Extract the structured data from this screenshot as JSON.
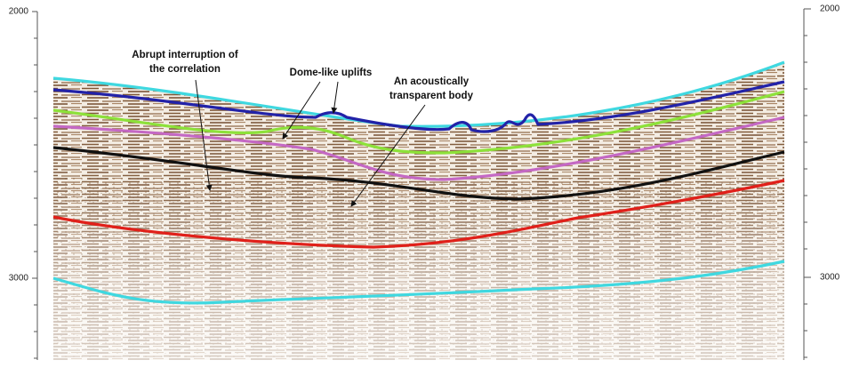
{
  "left_axis": {
    "labels": [
      "2000",
      "3000"
    ]
  },
  "right_axis": {
    "labels": [
      "2000",
      "3000"
    ]
  },
  "annotations": [
    {
      "lines": [
        "Abrupt interruption of",
        "the correlation"
      ]
    },
    {
      "lines": [
        "Dome-like uplifts"
      ]
    },
    {
      "lines": [
        "An acoustically",
        "transparent body"
      ]
    }
  ]
}
